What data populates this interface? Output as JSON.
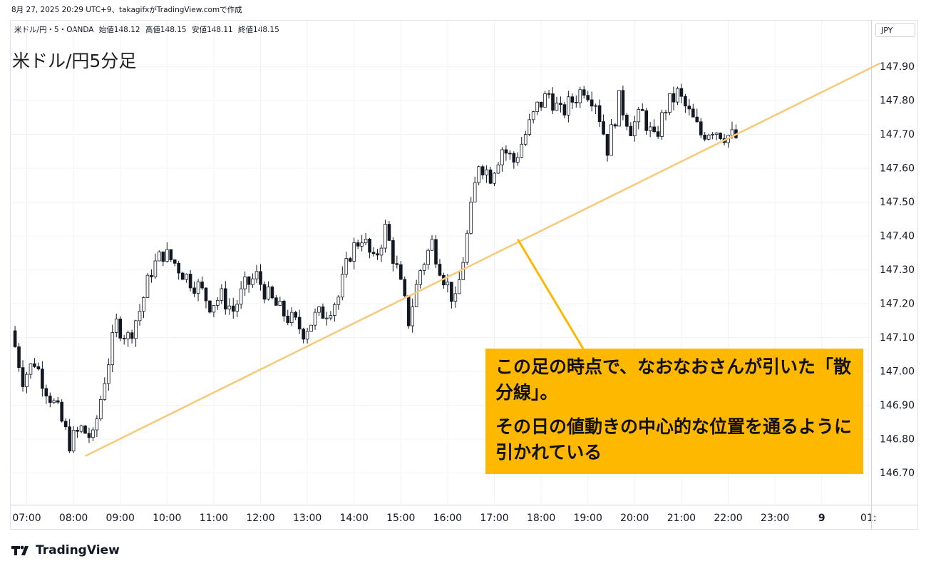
{
  "header": {
    "caption": "8月 27, 2025 20:29 UTC+9、takagifxがTradingView.comで作成"
  },
  "legend": {
    "symbol": "米ドル/円・5・OANDA",
    "open": "始値148.12",
    "high": "高値148.15",
    "low": "安値148.11",
    "close": "終値148.15"
  },
  "title": "米ドル/円5分足",
  "currency_badge": "JPY",
  "callout": {
    "line1": "この足の時点で、なおなおさんが引いた「散分線」。",
    "line2": "その日の値動きの中心的な位置を通るように引かれている"
  },
  "branding": {
    "logo_text": "TradingView"
  },
  "colors": {
    "callout_bg": "#ffb800",
    "trendline": "#f7c97a",
    "candle_stroke": "#131722",
    "grid": "#f0f3fa"
  },
  "chart_data": {
    "type": "candlestick",
    "symbol": "USD/JPY",
    "timeframe": "5",
    "ylim": [
      146.62,
      147.98
    ],
    "y_ticks": [
      "146.70",
      "146.80",
      "146.90",
      "147.00",
      "147.10",
      "147.20",
      "147.30",
      "147.40",
      "147.50",
      "147.60",
      "147.70",
      "147.80",
      "147.90"
    ],
    "x_ticks": [
      "07:00",
      "08:00",
      "09:00",
      "10:00",
      "11:00",
      "12:00",
      "13:00",
      "14:00",
      "15:00",
      "16:00",
      "17:00",
      "18:00",
      "19:00",
      "20:00",
      "21:00",
      "22:00",
      "23:00",
      "9",
      "01:"
    ],
    "x_start_hour": 6.75,
    "x_step_minutes": 5,
    "close_path": [
      147.12,
      146.98,
      147.03,
      146.95,
      146.88,
      146.79,
      146.83,
      146.8,
      146.98,
      147.14,
      147.1,
      147.18,
      147.3,
      147.35,
      147.32,
      147.28,
      147.25,
      147.2,
      147.22,
      147.18,
      147.25,
      147.28,
      147.22,
      147.18,
      147.15,
      147.12,
      147.16,
      147.18,
      147.22,
      147.35,
      147.4,
      147.32,
      147.42,
      147.3,
      147.15,
      147.3,
      147.38,
      147.28,
      147.2,
      147.4,
      147.62,
      147.58,
      147.66,
      147.62,
      147.7,
      147.78,
      147.82,
      147.76,
      147.8,
      147.84,
      147.8,
      147.66,
      147.8,
      147.72,
      147.76,
      147.68,
      147.78,
      147.82,
      147.76,
      147.7,
      147.72,
      147.7,
      147.69
    ],
    "trendline": {
      "start": {
        "time": "08:15",
        "price": 146.75
      },
      "end": {
        "time": "01:15",
        "price": 147.91
      }
    },
    "highlight_point": {
      "time": "17:30",
      "price": 147.39
    }
  }
}
